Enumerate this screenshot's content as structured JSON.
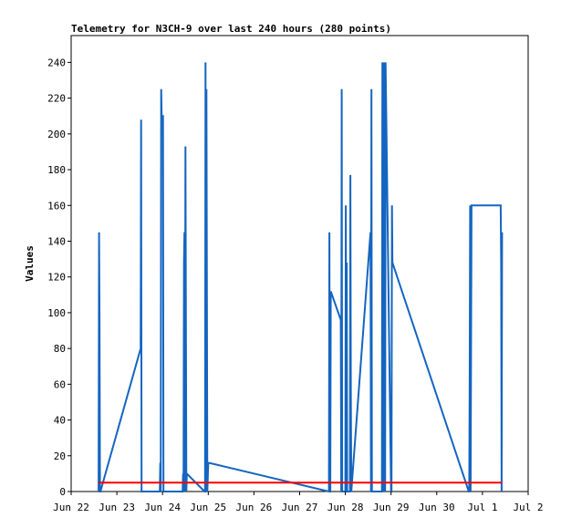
{
  "chart_data": {
    "type": "line",
    "title": "Telemetry for N3CH-9 over last 240 hours (280 points)",
    "xlabel": "",
    "ylabel": "Values",
    "x_tick_labels": [
      "Jun 22",
      "Jun 23",
      "Jun 24",
      "Jun 25",
      "Jun 26",
      "Jun 27",
      "Jun 28",
      "Jun 29",
      "Jun 30",
      "Jul 1",
      "Jul 2"
    ],
    "y_ticks": [
      0,
      20,
      40,
      60,
      80,
      100,
      120,
      140,
      160,
      180,
      200,
      220,
      240
    ],
    "xlim": [
      0,
      10
    ],
    "ylim": [
      0,
      255
    ],
    "grid": false,
    "series": [
      {
        "color": "#1565c0",
        "x": [
          0.6,
          0.61,
          0.62,
          0.63,
          0.64,
          1.52,
          1.53,
          1.54,
          1.55,
          1.94,
          1.95,
          1.96,
          1.97,
          1.98,
          1.99,
          2.0,
          2.01,
          2.02,
          2.44,
          2.45,
          2.46,
          2.47,
          2.48,
          2.49,
          2.5,
          2.51,
          2.52,
          2.53,
          2.92,
          2.93,
          2.94,
          2.95,
          2.96,
          2.97,
          2.98,
          3.0,
          3.02,
          5.64,
          5.65,
          5.66,
          5.67,
          5.68,
          5.9,
          5.91,
          5.92,
          5.93,
          6.0,
          6.01,
          6.02,
          6.03,
          6.04,
          6.1,
          6.11,
          6.12,
          6.13,
          6.55,
          6.56,
          6.57,
          6.58,
          6.8,
          6.81,
          6.82,
          6.83,
          6.84,
          6.85,
          6.86,
          6.87,
          6.88,
          7.0,
          7.01,
          7.02,
          7.03,
          8.7,
          8.71,
          8.72,
          8.73,
          8.74,
          8.75,
          8.76,
          9.4,
          9.41,
          9.42,
          9.43
        ],
        "y": [
          0,
          145,
          96,
          0,
          0,
          80,
          208,
          0,
          0,
          0,
          16,
          0,
          225,
          210,
          210,
          210,
          210,
          0,
          0,
          10,
          0,
          128,
          145,
          0,
          193,
          96,
          0,
          10,
          0,
          0,
          240,
          0,
          225,
          112,
          0,
          16,
          16,
          0,
          145,
          0,
          0,
          112,
          96,
          0,
          225,
          0,
          0,
          160,
          0,
          128,
          0,
          0,
          177,
          56,
          0,
          145,
          0,
          225,
          0,
          0,
          240,
          0,
          193,
          240,
          0,
          240,
          0,
          240,
          0,
          0,
          160,
          128,
          0,
          0,
          64,
          160,
          0,
          80,
          160,
          160,
          128,
          0,
          145
        ],
        "mode": "approx"
      },
      {
        "color": "#ff0000",
        "x": [
          0.6,
          9.43
        ],
        "y": [
          5,
          5
        ]
      }
    ]
  }
}
